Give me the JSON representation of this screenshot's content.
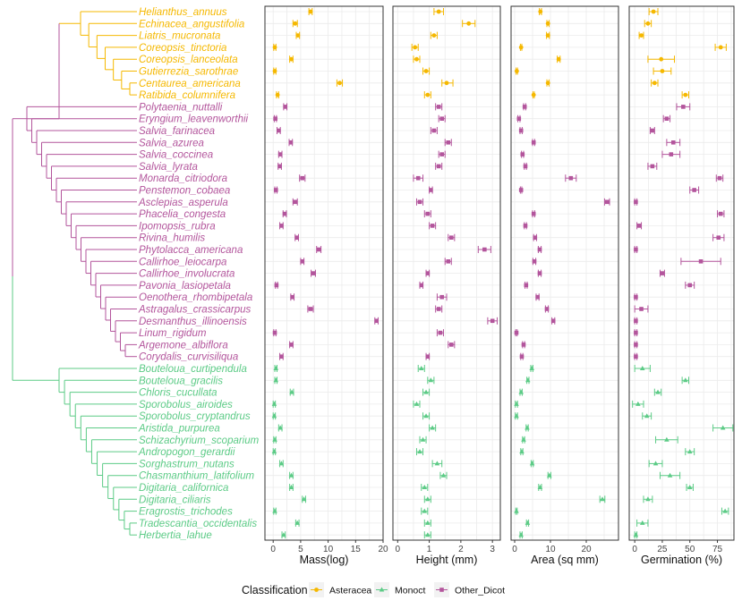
{
  "chart_data": {
    "type": "scatter",
    "subtype": "dot-with-error-bars, faceted, with phylogenetic tree",
    "legend": {
      "title": "Classification",
      "position": "bottom",
      "entries": [
        {
          "name": "Asteracea",
          "color": "#F5B800",
          "marker": "circle"
        },
        {
          "name": "Monoct",
          "color": "#5CCB86",
          "marker": "triangle"
        },
        {
          "name": "Other_Dicot",
          "color": "#B3559C",
          "marker": "square"
        }
      ]
    },
    "grid": true,
    "species": [
      {
        "name": "Helianthus_annuus",
        "group": "Asteracea"
      },
      {
        "name": "Echinacea_angustifolia",
        "group": "Asteracea"
      },
      {
        "name": "Liatris_mucronata",
        "group": "Asteracea"
      },
      {
        "name": "Coreopsis_tinctoria",
        "group": "Asteracea"
      },
      {
        "name": "Coreopsis_lanceolata",
        "group": "Asteracea"
      },
      {
        "name": "Gutierrezia_sarothrae",
        "group": "Asteracea"
      },
      {
        "name": "Centaurea_americana",
        "group": "Asteracea"
      },
      {
        "name": "Ratibida_columnifera",
        "group": "Asteracea"
      },
      {
        "name": "Polytaenia_nuttalli",
        "group": "Other_Dicot"
      },
      {
        "name": "Eryngium_leavenworthii",
        "group": "Other_Dicot"
      },
      {
        "name": "Salvia_farinacea",
        "group": "Other_Dicot"
      },
      {
        "name": "Salvia_azurea",
        "group": "Other_Dicot"
      },
      {
        "name": "Salvia_coccinea",
        "group": "Other_Dicot"
      },
      {
        "name": "Salvia_lyrata",
        "group": "Other_Dicot"
      },
      {
        "name": "Monarda_citriodora",
        "group": "Other_Dicot"
      },
      {
        "name": "Penstemon_cobaea",
        "group": "Other_Dicot"
      },
      {
        "name": "Asclepias_asperula",
        "group": "Other_Dicot"
      },
      {
        "name": "Phacelia_congesta",
        "group": "Other_Dicot"
      },
      {
        "name": "Ipomopsis_rubra",
        "group": "Other_Dicot"
      },
      {
        "name": "Rivina_humilis",
        "group": "Other_Dicot"
      },
      {
        "name": "Phytolacca_americana",
        "group": "Other_Dicot"
      },
      {
        "name": "Callirhoe_leiocarpa",
        "group": "Other_Dicot"
      },
      {
        "name": "Callirhoe_involucrata",
        "group": "Other_Dicot"
      },
      {
        "name": "Pavonia_lasiopetala",
        "group": "Other_Dicot"
      },
      {
        "name": "Oenothera_rhombipetala",
        "group": "Other_Dicot"
      },
      {
        "name": "Astragalus_crassicarpus",
        "group": "Other_Dicot"
      },
      {
        "name": "Desmanthus_illinoensis",
        "group": "Other_Dicot"
      },
      {
        "name": "Linum_rigidum",
        "group": "Other_Dicot"
      },
      {
        "name": "Argemone_albiflora",
        "group": "Other_Dicot"
      },
      {
        "name": "Corydalis_curvisiliqua",
        "group": "Other_Dicot"
      },
      {
        "name": "Bouteloua_curtipendula",
        "group": "Monoct"
      },
      {
        "name": "Bouteloua_gracilis",
        "group": "Monoct"
      },
      {
        "name": "Chloris_cucullata",
        "group": "Monoct"
      },
      {
        "name": "Sporobolus_airoides",
        "group": "Monoct"
      },
      {
        "name": "Sporobolus_cryptandrus",
        "group": "Monoct"
      },
      {
        "name": "Aristida_purpurea",
        "group": "Monoct"
      },
      {
        "name": "Schizachyrium_scoparium",
        "group": "Monoct"
      },
      {
        "name": "Andropogon_gerardii",
        "group": "Monoct"
      },
      {
        "name": "Sorghastrum_nutans",
        "group": "Monoct"
      },
      {
        "name": "Chasmanthium_latifolium",
        "group": "Monoct"
      },
      {
        "name": "Digitaria_californica",
        "group": "Monoct"
      },
      {
        "name": "Digitaria_ciliaris",
        "group": "Monoct"
      },
      {
        "name": "Eragrostis_trichodes",
        "group": "Monoct"
      },
      {
        "name": "Tradescantia_occidentalis",
        "group": "Monoct"
      },
      {
        "name": "Herbertia_lahue",
        "group": "Monoct"
      }
    ],
    "panels": [
      {
        "xlabel": "Mass(log)",
        "xlim": [
          -1.5,
          20
        ],
        "ticks": [
          0,
          5,
          10,
          15,
          20
        ],
        "tick_labels": [
          "0",
          "5",
          "10",
          "15",
          "20"
        ],
        "values": [
          [
            6.8,
            6.5,
            7.1
          ],
          [
            4.0,
            3.6,
            4.4
          ],
          [
            4.5,
            4.2,
            4.8
          ],
          [
            0.3,
            0.1,
            0.5
          ],
          [
            3.3,
            3.0,
            3.6
          ],
          [
            0.3,
            0.1,
            0.5
          ],
          [
            12.1,
            11.6,
            12.6
          ],
          [
            0.8,
            0.6,
            1.0
          ],
          [
            2.2,
            1.9,
            2.5
          ],
          [
            0.4,
            0.2,
            0.6
          ],
          [
            1.0,
            0.7,
            1.3
          ],
          [
            3.2,
            2.9,
            3.5
          ],
          [
            1.3,
            1.0,
            1.6
          ],
          [
            1.2,
            0.9,
            1.5
          ],
          [
            5.3,
            4.8,
            5.8
          ],
          [
            0.5,
            0.3,
            0.7
          ],
          [
            4.0,
            3.6,
            4.4
          ],
          [
            2.1,
            1.8,
            2.4
          ],
          [
            1.5,
            1.2,
            1.8
          ],
          [
            4.3,
            4.0,
            4.6
          ],
          [
            8.3,
            7.9,
            8.7
          ],
          [
            5.3,
            5.0,
            5.6
          ],
          [
            7.3,
            6.9,
            7.7
          ],
          [
            0.6,
            0.4,
            0.8
          ],
          [
            3.5,
            3.2,
            3.8
          ],
          [
            6.8,
            6.3,
            7.3
          ],
          [
            18.8,
            18.5,
            19.1
          ],
          [
            0.3,
            0.1,
            0.5
          ],
          [
            3.3,
            3.0,
            3.6
          ],
          [
            1.5,
            1.2,
            1.8
          ],
          [
            0.5,
            0.3,
            0.7
          ],
          [
            0.5,
            0.3,
            0.7
          ],
          [
            3.4,
            3.1,
            3.7
          ],
          [
            0.2,
            0.0,
            0.4
          ],
          [
            0.2,
            0.0,
            0.4
          ],
          [
            1.3,
            1.0,
            1.6
          ],
          [
            0.3,
            0.1,
            0.5
          ],
          [
            0.2,
            0.0,
            0.4
          ],
          [
            1.5,
            1.2,
            1.8
          ],
          [
            3.3,
            3.0,
            3.6
          ],
          [
            3.3,
            3.0,
            3.6
          ],
          [
            5.6,
            5.3,
            5.9
          ],
          [
            0.3,
            0.1,
            0.5
          ],
          [
            4.4,
            4.1,
            4.7
          ],
          [
            1.9,
            1.6,
            2.2
          ]
        ]
      },
      {
        "xlabel": "Height (mm)",
        "xlim": [
          -0.15,
          3.25
        ],
        "ticks": [
          0,
          1,
          2,
          3
        ],
        "tick_labels": [
          "0",
          "1",
          "2",
          "3"
        ],
        "values": [
          [
            1.3,
            1.15,
            1.45
          ],
          [
            2.25,
            2.05,
            2.45
          ],
          [
            1.15,
            1.05,
            1.25
          ],
          [
            0.55,
            0.45,
            0.65
          ],
          [
            0.6,
            0.5,
            0.7
          ],
          [
            0.9,
            0.8,
            1.0
          ],
          [
            1.55,
            1.4,
            1.75
          ],
          [
            0.95,
            0.85,
            1.05
          ],
          [
            1.3,
            1.2,
            1.4
          ],
          [
            1.4,
            1.3,
            1.5
          ],
          [
            1.15,
            1.05,
            1.25
          ],
          [
            1.6,
            1.5,
            1.7
          ],
          [
            1.4,
            1.3,
            1.5
          ],
          [
            1.3,
            1.2,
            1.4
          ],
          [
            0.65,
            0.5,
            0.8
          ],
          [
            1.05,
            1.0,
            1.1
          ],
          [
            0.7,
            0.6,
            0.8
          ],
          [
            0.95,
            0.85,
            1.05
          ],
          [
            1.1,
            1.0,
            1.2
          ],
          [
            1.7,
            1.6,
            1.8
          ],
          [
            2.75,
            2.55,
            2.95
          ],
          [
            1.6,
            1.5,
            1.7
          ],
          [
            0.95,
            0.9,
            1.0
          ],
          [
            0.75,
            0.7,
            0.8
          ],
          [
            1.4,
            1.25,
            1.55
          ],
          [
            1.3,
            1.2,
            1.4
          ],
          [
            3.0,
            2.85,
            3.15
          ],
          [
            1.35,
            1.25,
            1.45
          ],
          [
            1.7,
            1.6,
            1.8
          ],
          [
            0.95,
            0.9,
            1.0
          ],
          [
            0.75,
            0.65,
            0.85
          ],
          [
            1.05,
            0.95,
            1.15
          ],
          [
            0.9,
            0.8,
            1.0
          ],
          [
            0.6,
            0.5,
            0.7
          ],
          [
            0.9,
            0.8,
            1.0
          ],
          [
            1.1,
            1.0,
            1.2
          ],
          [
            0.8,
            0.7,
            0.9
          ],
          [
            0.7,
            0.6,
            0.8
          ],
          [
            1.25,
            1.1,
            1.4
          ],
          [
            1.45,
            1.35,
            1.55
          ],
          [
            0.85,
            0.75,
            0.95
          ],
          [
            0.95,
            0.85,
            1.05
          ],
          [
            0.85,
            0.75,
            0.95
          ],
          [
            0.95,
            0.85,
            1.05
          ],
          [
            0.95,
            0.85,
            1.05
          ]
        ]
      },
      {
        "xlabel": "Area (sq mm)",
        "xlim": [
          -1.0,
          29
        ],
        "ticks": [
          0,
          10,
          20
        ],
        "tick_labels": [
          "0",
          "10",
          "20"
        ],
        "values": [
          [
            7.2,
            6.9,
            7.5
          ],
          [
            9.3,
            9.0,
            9.6
          ],
          [
            9.3,
            8.9,
            9.7
          ],
          [
            1.8,
            1.6,
            2.0
          ],
          [
            12.3,
            11.9,
            12.7
          ],
          [
            0.6,
            0.4,
            0.8
          ],
          [
            9.3,
            9.0,
            9.6
          ],
          [
            5.3,
            5.1,
            5.5
          ],
          [
            2.8,
            2.5,
            3.1
          ],
          [
            1.2,
            0.9,
            1.5
          ],
          [
            1.8,
            1.5,
            2.1
          ],
          [
            5.3,
            5.0,
            5.6
          ],
          [
            2.2,
            1.9,
            2.5
          ],
          [
            3.0,
            2.7,
            3.3
          ],
          [
            15.7,
            14.2,
            17.2
          ],
          [
            1.8,
            1.6,
            2.0
          ],
          [
            25.8,
            25.1,
            26.5
          ],
          [
            5.3,
            5.0,
            5.6
          ],
          [
            3.0,
            2.7,
            3.3
          ],
          [
            5.7,
            5.3,
            6.1
          ],
          [
            7.0,
            6.6,
            7.4
          ],
          [
            5.5,
            5.1,
            5.9
          ],
          [
            7.0,
            6.6,
            7.4
          ],
          [
            3.2,
            2.9,
            3.5
          ],
          [
            6.4,
            6.0,
            6.8
          ],
          [
            9.0,
            8.6,
            9.4
          ],
          [
            10.8,
            10.4,
            11.2
          ],
          [
            0.5,
            0.3,
            0.7
          ],
          [
            2.5,
            2.2,
            2.8
          ],
          [
            2.0,
            1.7,
            2.3
          ],
          [
            4.8,
            4.5,
            5.1
          ],
          [
            3.7,
            3.4,
            4.0
          ],
          [
            1.8,
            1.5,
            2.1
          ],
          [
            0.5,
            0.2,
            0.8
          ],
          [
            0.5,
            0.2,
            0.8
          ],
          [
            3.5,
            3.2,
            3.8
          ],
          [
            2.5,
            2.2,
            2.8
          ],
          [
            2.0,
            1.7,
            2.3
          ],
          [
            4.9,
            4.6,
            5.2
          ],
          [
            9.7,
            9.3,
            10.1
          ],
          [
            7.1,
            6.7,
            7.5
          ],
          [
            24.5,
            23.8,
            25.2
          ],
          [
            0.5,
            0.3,
            0.7
          ],
          [
            3.6,
            3.3,
            3.9
          ],
          [
            1.8,
            1.5,
            2.1
          ]
        ]
      },
      {
        "xlabel": "Germination (%)",
        "xlim": [
          -5,
          90
        ],
        "ticks": [
          0,
          25,
          50,
          75
        ],
        "tick_labels": [
          "0",
          "25",
          "50",
          "75"
        ],
        "values": [
          [
            17,
            13,
            21
          ],
          [
            12,
            9,
            15
          ],
          [
            6,
            4,
            8
          ],
          [
            78,
            73,
            83
          ],
          [
            24,
            12,
            36
          ],
          [
            25,
            17,
            33
          ],
          [
            18,
            15,
            21
          ],
          [
            46,
            43,
            49
          ],
          [
            44,
            38,
            50
          ],
          [
            29,
            26,
            32
          ],
          [
            16,
            14,
            18
          ],
          [
            35,
            29,
            41
          ],
          [
            33,
            25,
            41
          ],
          [
            16,
            12,
            20
          ],
          [
            77,
            74,
            80
          ],
          [
            54,
            50,
            58
          ],
          [
            1,
            0,
            2
          ],
          [
            78,
            75,
            81
          ],
          [
            4,
            2,
            6
          ],
          [
            76,
            71,
            81
          ],
          [
            1,
            0,
            2
          ],
          [
            60,
            42,
            78
          ],
          [
            25,
            23,
            27
          ],
          [
            50,
            46,
            54
          ],
          [
            1,
            0,
            2
          ],
          [
            6,
            0,
            12
          ],
          [
            1,
            0,
            2
          ],
          [
            1,
            0,
            2
          ],
          [
            1,
            0,
            2
          ],
          [
            1,
            0,
            2
          ],
          [
            7,
            0,
            14
          ],
          [
            46,
            43,
            49
          ],
          [
            21,
            18,
            24
          ],
          [
            3,
            -2,
            8
          ],
          [
            11,
            7,
            15
          ],
          [
            80,
            71,
            89
          ],
          [
            29,
            19,
            39
          ],
          [
            50,
            46,
            54
          ],
          [
            19,
            13,
            25
          ],
          [
            32,
            23,
            41
          ],
          [
            50,
            47,
            53
          ],
          [
            12,
            8,
            16
          ],
          [
            82,
            79,
            85
          ],
          [
            7,
            2,
            12
          ],
          [
            1,
            0,
            2
          ]
        ]
      }
    ]
  }
}
